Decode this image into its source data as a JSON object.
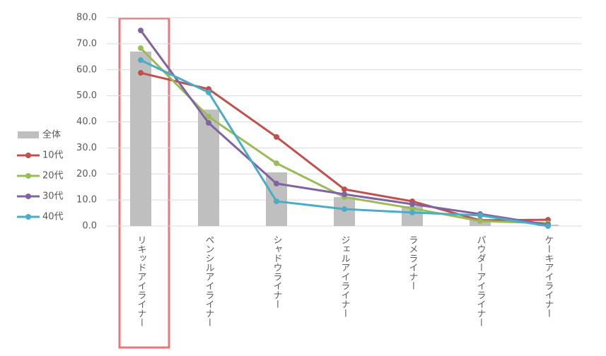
{
  "chart_data": {
    "type": "bar",
    "categories": [
      "リキッドアイライナー",
      "ペンシルアイライナー",
      "シャドウライナー",
      "ジェルアイライナー",
      "ラメライナー",
      "パウダーアイライナー",
      "ケーキアイライナー"
    ],
    "series": [
      {
        "name": "全体",
        "type": "bar",
        "color": "#bfbfbf",
        "values": [
          67.0,
          44.7,
          20.6,
          11.1,
          7.6,
          2.2,
          0.5
        ]
      },
      {
        "name": "10代",
        "type": "line",
        "color": "#c0504d",
        "values": [
          58.8,
          52.6,
          34.2,
          14.1,
          9.5,
          2.2,
          2.4
        ]
      },
      {
        "name": "20代",
        "type": "line",
        "color": "#9bbb59",
        "values": [
          68.3,
          42.0,
          24.1,
          11.1,
          6.8,
          1.9,
          1.1
        ]
      },
      {
        "name": "30代",
        "type": "line",
        "color": "#8064a2",
        "values": [
          75.1,
          39.6,
          16.3,
          12.2,
          8.4,
          4.6,
          0.5
        ]
      },
      {
        "name": "40代",
        "type": "line",
        "color": "#4bacc6",
        "values": [
          63.7,
          51.3,
          9.5,
          6.5,
          5.2,
          4.1,
          0.0
        ]
      }
    ],
    "ylim": [
      0,
      80
    ],
    "yticks": [
      {
        "value": 0,
        "label": "0.0"
      },
      {
        "value": 10,
        "label": "10.0"
      },
      {
        "value": 20,
        "label": "20.0"
      },
      {
        "value": 30,
        "label": "30.0"
      },
      {
        "value": 40,
        "label": "40.0"
      },
      {
        "value": 50,
        "label": "50.0"
      },
      {
        "value": 60,
        "label": "60.0"
      },
      {
        "value": 70,
        "label": "70.0"
      },
      {
        "value": 80,
        "label": "80.0"
      }
    ],
    "grid": true,
    "legend": "left"
  }
}
